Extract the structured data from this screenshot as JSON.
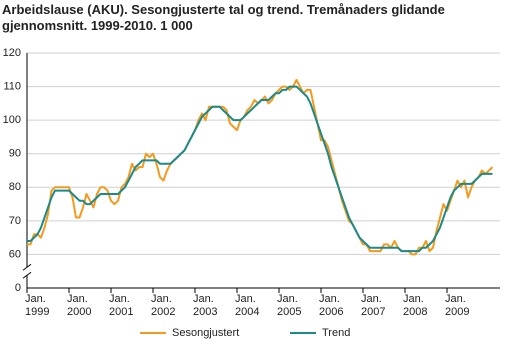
{
  "chart_data": {
    "type": "line",
    "title": "Arbeidslause (AKU). Sesongjusterte tal og trend. Tremånaders glidande gjennomsnitt. 1999-2010. 1 000",
    "categories": [
      "Jan. 1999",
      null,
      null,
      null,
      null,
      null,
      null,
      null,
      null,
      null,
      null,
      null,
      "Jan. 2000",
      null,
      null,
      null,
      null,
      null,
      null,
      null,
      null,
      null,
      null,
      null,
      "Jan. 2001",
      null,
      null,
      null,
      null,
      null,
      null,
      null,
      null,
      null,
      null,
      null,
      "Jan. 2002",
      null,
      null,
      null,
      null,
      null,
      null,
      null,
      null,
      null,
      null,
      null,
      "Jan. 2003",
      null,
      null,
      null,
      null,
      null,
      null,
      null,
      null,
      null,
      null,
      null,
      "Jan. 2004",
      null,
      null,
      null,
      null,
      null,
      null,
      null,
      null,
      null,
      null,
      null,
      "Jan. 2005",
      null,
      null,
      null,
      null,
      null,
      null,
      null,
      null,
      null,
      null,
      null,
      "Jan. 2006",
      null,
      null,
      null,
      null,
      null,
      null,
      null,
      null,
      null,
      null,
      null,
      "Jan. 2007",
      null,
      null,
      null,
      null,
      null,
      null,
      null,
      null,
      null,
      null,
      null,
      "Jan. 2008",
      null,
      null,
      null,
      null,
      null,
      null,
      null,
      null,
      null,
      null,
      null,
      "Jan. 2009",
      null,
      null,
      null,
      null,
      null,
      null,
      null,
      null,
      null,
      null,
      null,
      null,
      null
    ],
    "series": [
      {
        "name": "Sesongjustert",
        "color": "#f39a1e",
        "values": [
          63,
          63,
          66,
          66,
          65,
          68,
          72,
          79,
          80,
          80,
          80,
          80,
          80,
          77,
          71,
          71,
          74,
          78,
          76,
          74,
          78,
          80,
          80,
          79,
          76,
          75,
          76,
          80,
          81,
          83,
          87,
          85,
          86,
          86,
          90,
          89,
          90,
          87,
          83,
          82,
          85,
          87,
          88,
          89,
          90,
          91,
          93,
          95,
          97,
          100,
          102,
          100,
          104,
          104,
          104,
          104,
          104,
          103,
          99,
          98,
          97,
          100,
          101,
          103,
          104,
          106,
          105,
          106,
          107,
          105,
          106,
          108,
          109,
          110,
          110,
          109,
          110,
          112,
          110,
          108,
          109,
          109,
          104,
          99,
          94,
          94,
          92,
          88,
          84,
          80,
          76,
          73,
          70,
          69,
          67,
          65,
          63,
          63,
          61,
          61,
          61,
          61,
          63,
          63,
          62,
          64,
          62,
          61,
          61,
          61,
          60,
          60,
          62,
          62,
          64,
          61,
          62,
          67,
          71,
          75,
          73,
          76,
          79,
          82,
          80,
          82,
          77,
          80,
          82,
          83,
          85,
          84,
          85,
          86
        ]
      },
      {
        "name": "Trend",
        "color": "#1a8a8a",
        "values": [
          64,
          64,
          65,
          66,
          68,
          71,
          74,
          77,
          79,
          79,
          79,
          79,
          79,
          78,
          77,
          76,
          76,
          75,
          75,
          76,
          77,
          78,
          78,
          78,
          78,
          78,
          78,
          79,
          80,
          82,
          84,
          86,
          87,
          88,
          88,
          88,
          88,
          88,
          87,
          87,
          87,
          87,
          88,
          89,
          90,
          91,
          93,
          95,
          97,
          99,
          101,
          102,
          103,
          104,
          104,
          104,
          103,
          102,
          101,
          100,
          100,
          100,
          101,
          102,
          103,
          104,
          105,
          106,
          106,
          106,
          107,
          108,
          108,
          109,
          109,
          110,
          110,
          110,
          109,
          108,
          107,
          105,
          102,
          99,
          96,
          93,
          90,
          86,
          83,
          80,
          77,
          74,
          71,
          69,
          67,
          65,
          64,
          63,
          62,
          62,
          62,
          62,
          62,
          62,
          62,
          62,
          62,
          61,
          61,
          61,
          61,
          61,
          61,
          62,
          62,
          63,
          64,
          66,
          68,
          71,
          74,
          77,
          79,
          80,
          81,
          81,
          81,
          81,
          82,
          83,
          84,
          84,
          84,
          84
        ]
      }
    ],
    "ylim": [
      0,
      120
    ],
    "yticks": [
      0,
      60,
      70,
      80,
      90,
      100,
      110,
      120
    ],
    "grid": true,
    "axis_break": true,
    "legend": "bottom"
  }
}
